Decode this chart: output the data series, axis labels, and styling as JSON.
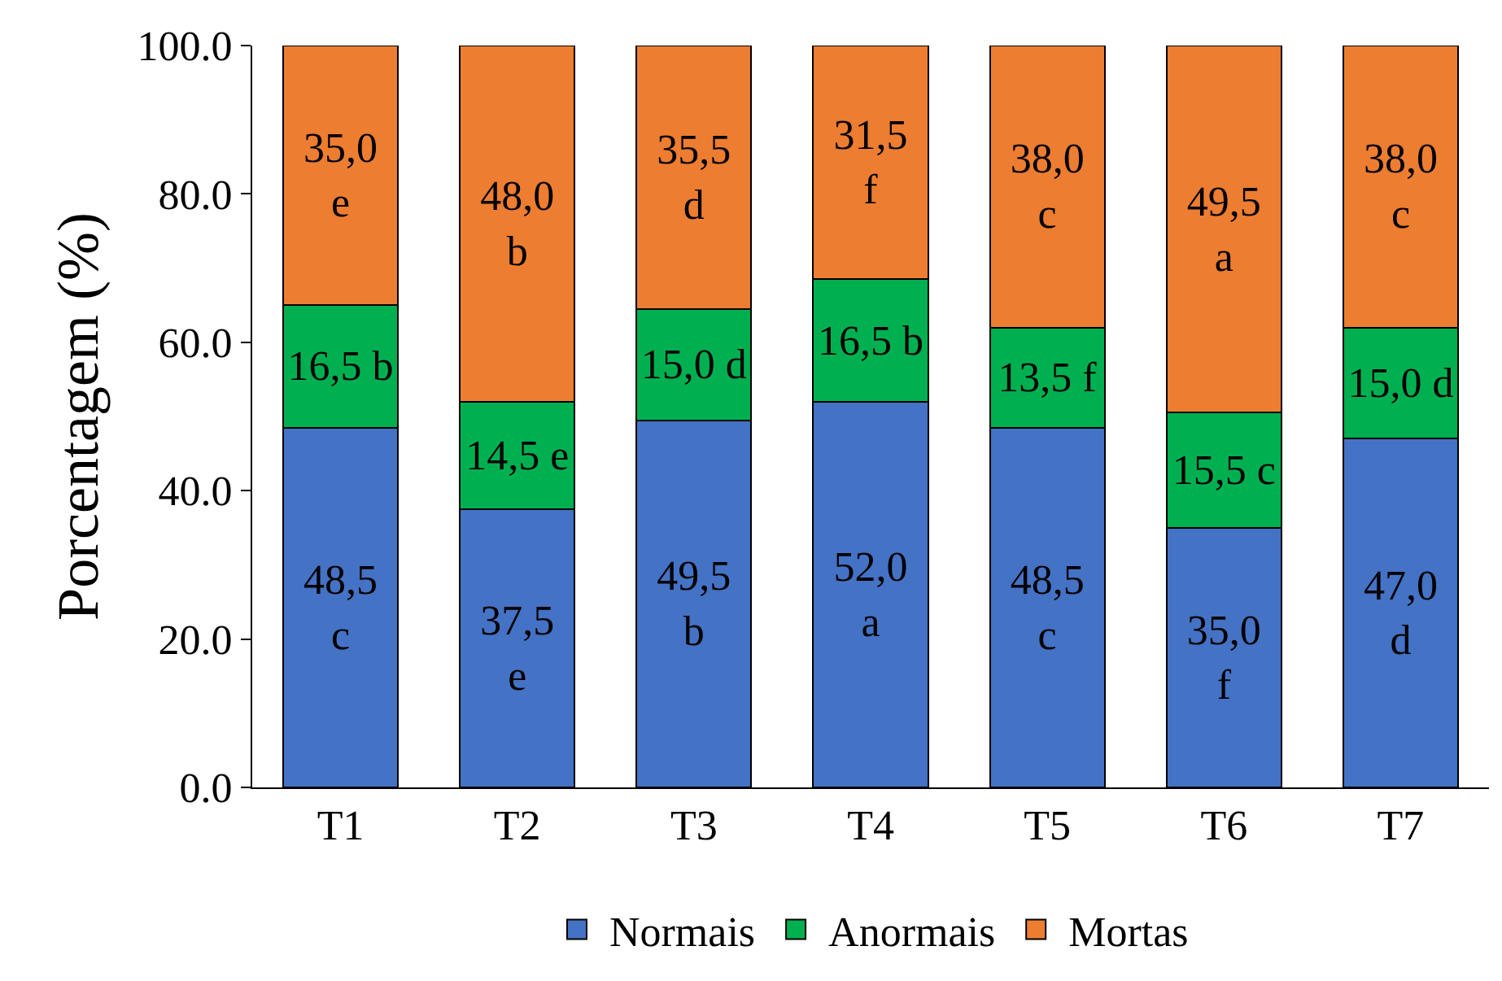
{
  "chart_data": {
    "type": "bar",
    "stacked": true,
    "ylabel": "Porcentagem (%)",
    "categories": [
      "T1",
      "T2",
      "T3",
      "T4",
      "T5",
      "T6",
      "T7"
    ],
    "series": [
      {
        "name": "Normais",
        "color": "#4472c4",
        "values": [
          48.5,
          37.5,
          49.5,
          52.0,
          48.5,
          35.0,
          47.0
        ],
        "value_labels": [
          "48,5\nc",
          "37,5\ne",
          "49,5\nb",
          "52,0\na",
          "48,5\nc",
          "35,0\nf",
          "47,0\nd"
        ]
      },
      {
        "name": "Anormais",
        "color": "#00b050",
        "values": [
          16.5,
          14.5,
          15.0,
          16.5,
          13.5,
          15.5,
          15.0
        ],
        "value_labels": [
          "16,5 b",
          "14,5 e",
          "15,0 d",
          "16,5 b",
          "13,5 f",
          "15,5 c",
          "15,0 d"
        ]
      },
      {
        "name": "Mortas",
        "color": "#ed7d31",
        "values": [
          35.0,
          48.0,
          35.5,
          31.5,
          38.0,
          49.5,
          38.0
        ],
        "value_labels": [
          "35,0\ne",
          "48,0\nb",
          "35,5\nd",
          "31,5\nf",
          "38,0\nc",
          "49,5\na",
          "38,0\nc"
        ]
      }
    ],
    "ylim": [
      0,
      100
    ],
    "yticks": [
      {
        "value": 0,
        "label": "0.0"
      },
      {
        "value": 20,
        "label": "20.0"
      },
      {
        "value": 40,
        "label": "40.0"
      },
      {
        "value": 60,
        "label": "60.0"
      },
      {
        "value": 80,
        "label": "80.0"
      },
      {
        "value": 100,
        "label": "100.0"
      }
    ],
    "grid": false,
    "legend": "bottom"
  }
}
